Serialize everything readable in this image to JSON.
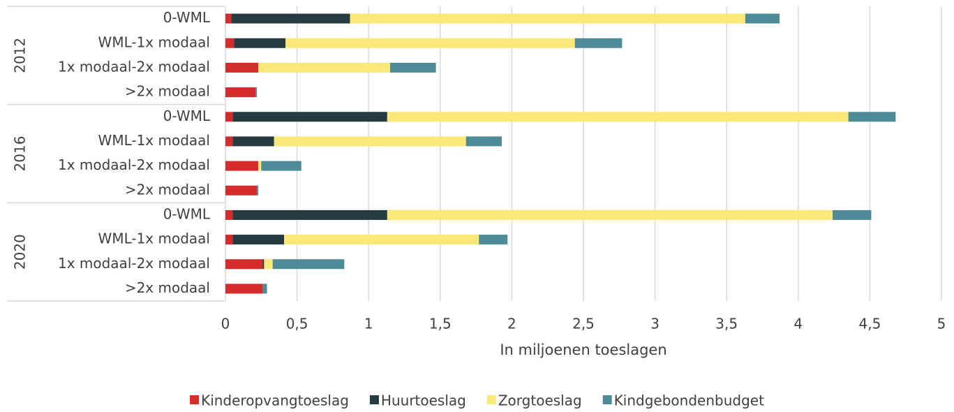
{
  "chart_data": {
    "type": "stacked-barh",
    "groups": [
      "2012",
      "2016",
      "2020"
    ],
    "categories": [
      "0-WML",
      "WML-1x modaal",
      "1x modaal-2x modaal",
      ">2x modaal",
      "0-WML",
      "WML-1x modaal",
      "1x modaal-2x modaal",
      ">2x modaal",
      "0-WML",
      "WML-1x modaal",
      "1x modaal-2x modaal",
      ">2x modaal"
    ],
    "series": [
      {
        "name": "Kinderopvangtoeslag",
        "color": "#d62b2b",
        "values": [
          0.04,
          0.06,
          0.23,
          0.21,
          0.05,
          0.05,
          0.23,
          0.22,
          0.05,
          0.05,
          0.26,
          0.26
        ]
      },
      {
        "name": "Huurtoeslag",
        "color": "#253b40",
        "values": [
          0.83,
          0.36,
          0,
          0,
          1.08,
          0.29,
          0,
          0,
          1.08,
          0.36,
          0.01,
          0
        ]
      },
      {
        "name": "Zorgtoeslag",
        "color": "#fbe878",
        "values": [
          2.76,
          2.02,
          0.92,
          0,
          3.22,
          1.34,
          0.02,
          0,
          3.11,
          1.36,
          0.06,
          0
        ]
      },
      {
        "name": "Kindgebondenbudget",
        "color": "#4e8a97",
        "values": [
          0.24,
          0.33,
          0.32,
          0.01,
          0.33,
          0.25,
          0.28,
          0.01,
          0.27,
          0.2,
          0.5,
          0.03
        ]
      }
    ],
    "xlabel": "In miljoenen toeslagen",
    "xlim": [
      0,
      5
    ],
    "xticks": [
      0,
      {
        "value": 0.5,
        "label": "0,5"
      },
      1,
      {
        "value": 1.5,
        "label": "1,5"
      },
      2,
      {
        "value": 2.5,
        "label": "2,5"
      },
      3,
      {
        "value": 3.5,
        "label": "3,5"
      },
      4,
      {
        "value": 4.5,
        "label": "4,5"
      },
      5
    ],
    "grid": true,
    "legend": "bottom"
  }
}
